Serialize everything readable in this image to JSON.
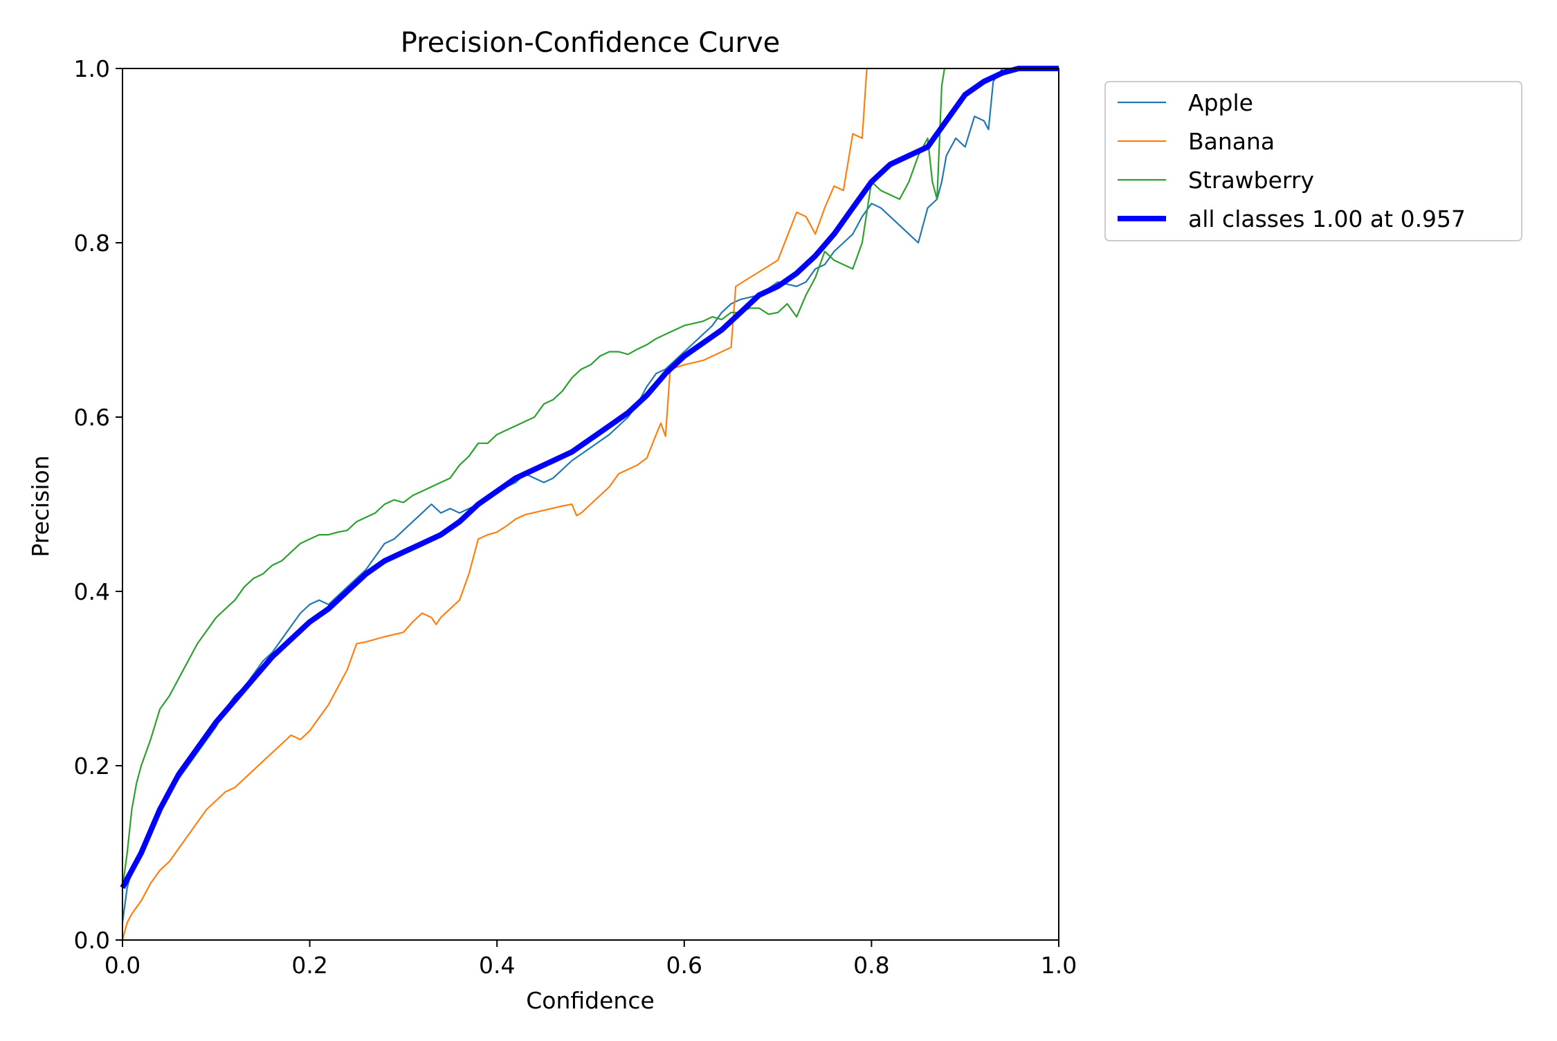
{
  "chart_data": {
    "type": "line",
    "title": "Precision-Confidence Curve",
    "xlabel": "Confidence",
    "ylabel": "Precision",
    "xlim": [
      0,
      1
    ],
    "ylim": [
      0,
      1
    ],
    "x_ticks": [
      "0.0",
      "0.2",
      "0.4",
      "0.6",
      "0.8",
      "1.0"
    ],
    "y_ticks": [
      "0.0",
      "0.2",
      "0.4",
      "0.6",
      "0.8",
      "1.0"
    ],
    "grid": false,
    "legend_position": "outside-top-right",
    "series": [
      {
        "name": "Apple",
        "color": "#1f77b4",
        "points": [
          [
            0,
            0.02
          ],
          [
            0.005,
            0.06
          ],
          [
            0.01,
            0.08
          ],
          [
            0.02,
            0.1
          ],
          [
            0.03,
            0.13
          ],
          [
            0.04,
            0.15
          ],
          [
            0.05,
            0.17
          ],
          [
            0.06,
            0.185
          ],
          [
            0.07,
            0.2
          ],
          [
            0.08,
            0.215
          ],
          [
            0.09,
            0.23
          ],
          [
            0.1,
            0.245
          ],
          [
            0.11,
            0.265
          ],
          [
            0.12,
            0.28
          ],
          [
            0.13,
            0.29
          ],
          [
            0.14,
            0.305
          ],
          [
            0.15,
            0.32
          ],
          [
            0.16,
            0.33
          ],
          [
            0.17,
            0.345
          ],
          [
            0.18,
            0.36
          ],
          [
            0.19,
            0.375
          ],
          [
            0.2,
            0.385
          ],
          [
            0.21,
            0.39
          ],
          [
            0.22,
            0.385
          ],
          [
            0.23,
            0.395
          ],
          [
            0.24,
            0.405
          ],
          [
            0.25,
            0.415
          ],
          [
            0.26,
            0.425
          ],
          [
            0.27,
            0.44
          ],
          [
            0.28,
            0.455
          ],
          [
            0.29,
            0.46
          ],
          [
            0.3,
            0.47
          ],
          [
            0.31,
            0.48
          ],
          [
            0.32,
            0.49
          ],
          [
            0.33,
            0.5
          ],
          [
            0.34,
            0.49
          ],
          [
            0.35,
            0.495
          ],
          [
            0.36,
            0.49
          ],
          [
            0.37,
            0.495
          ],
          [
            0.38,
            0.5
          ],
          [
            0.39,
            0.505
          ],
          [
            0.4,
            0.515
          ],
          [
            0.41,
            0.52
          ],
          [
            0.42,
            0.525
          ],
          [
            0.43,
            0.535
          ],
          [
            0.44,
            0.53
          ],
          [
            0.45,
            0.525
          ],
          [
            0.46,
            0.53
          ],
          [
            0.47,
            0.54
          ],
          [
            0.48,
            0.55
          ],
          [
            0.5,
            0.565
          ],
          [
            0.52,
            0.58
          ],
          [
            0.54,
            0.6
          ],
          [
            0.55,
            0.615
          ],
          [
            0.56,
            0.635
          ],
          [
            0.57,
            0.65
          ],
          [
            0.58,
            0.655
          ],
          [
            0.59,
            0.665
          ],
          [
            0.6,
            0.675
          ],
          [
            0.62,
            0.695
          ],
          [
            0.63,
            0.705
          ],
          [
            0.64,
            0.72
          ],
          [
            0.65,
            0.73
          ],
          [
            0.66,
            0.735
          ],
          [
            0.68,
            0.74
          ],
          [
            0.7,
            0.755
          ],
          [
            0.72,
            0.75
          ],
          [
            0.73,
            0.755
          ],
          [
            0.74,
            0.77
          ],
          [
            0.75,
            0.775
          ],
          [
            0.76,
            0.79
          ],
          [
            0.77,
            0.8
          ],
          [
            0.78,
            0.81
          ],
          [
            0.79,
            0.83
          ],
          [
            0.8,
            0.845
          ],
          [
            0.81,
            0.84
          ],
          [
            0.82,
            0.83
          ],
          [
            0.83,
            0.82
          ],
          [
            0.84,
            0.81
          ],
          [
            0.85,
            0.8
          ],
          [
            0.86,
            0.84
          ],
          [
            0.87,
            0.85
          ],
          [
            0.875,
            0.87
          ],
          [
            0.88,
            0.9
          ],
          [
            0.89,
            0.92
          ],
          [
            0.9,
            0.91
          ],
          [
            0.91,
            0.945
          ],
          [
            0.92,
            0.94
          ],
          [
            0.925,
            0.93
          ],
          [
            0.93,
            0.985
          ],
          [
            0.94,
            1.0
          ],
          [
            1,
            1.0
          ]
        ]
      },
      {
        "name": "Banana",
        "color": "#ff7f0e",
        "points": [
          [
            0,
            0.0
          ],
          [
            0.005,
            0.02
          ],
          [
            0.01,
            0.03
          ],
          [
            0.02,
            0.045
          ],
          [
            0.03,
            0.065
          ],
          [
            0.04,
            0.08
          ],
          [
            0.05,
            0.09
          ],
          [
            0.06,
            0.105
          ],
          [
            0.07,
            0.12
          ],
          [
            0.08,
            0.135
          ],
          [
            0.09,
            0.15
          ],
          [
            0.1,
            0.16
          ],
          [
            0.11,
            0.17
          ],
          [
            0.12,
            0.175
          ],
          [
            0.13,
            0.185
          ],
          [
            0.14,
            0.195
          ],
          [
            0.15,
            0.205
          ],
          [
            0.16,
            0.215
          ],
          [
            0.17,
            0.225
          ],
          [
            0.18,
            0.235
          ],
          [
            0.19,
            0.23
          ],
          [
            0.2,
            0.24
          ],
          [
            0.21,
            0.255
          ],
          [
            0.22,
            0.27
          ],
          [
            0.23,
            0.29
          ],
          [
            0.24,
            0.31
          ],
          [
            0.25,
            0.34
          ],
          [
            0.26,
            0.342
          ],
          [
            0.28,
            0.348
          ],
          [
            0.3,
            0.353
          ],
          [
            0.31,
            0.365
          ],
          [
            0.32,
            0.375
          ],
          [
            0.33,
            0.37
          ],
          [
            0.335,
            0.362
          ],
          [
            0.34,
            0.37
          ],
          [
            0.35,
            0.38
          ],
          [
            0.36,
            0.39
          ],
          [
            0.37,
            0.42
          ],
          [
            0.38,
            0.46
          ],
          [
            0.39,
            0.465
          ],
          [
            0.4,
            0.468
          ],
          [
            0.41,
            0.475
          ],
          [
            0.42,
            0.483
          ],
          [
            0.43,
            0.488
          ],
          [
            0.45,
            0.493
          ],
          [
            0.47,
            0.498
          ],
          [
            0.48,
            0.5
          ],
          [
            0.485,
            0.487
          ],
          [
            0.49,
            0.49
          ],
          [
            0.5,
            0.5
          ],
          [
            0.52,
            0.52
          ],
          [
            0.53,
            0.535
          ],
          [
            0.54,
            0.54
          ],
          [
            0.55,
            0.545
          ],
          [
            0.56,
            0.553
          ],
          [
            0.57,
            0.58
          ],
          [
            0.575,
            0.593
          ],
          [
            0.58,
            0.578
          ],
          [
            0.585,
            0.655
          ],
          [
            0.6,
            0.66
          ],
          [
            0.62,
            0.665
          ],
          [
            0.65,
            0.68
          ],
          [
            0.655,
            0.75
          ],
          [
            0.7,
            0.78
          ],
          [
            0.72,
            0.835
          ],
          [
            0.73,
            0.83
          ],
          [
            0.74,
            0.81
          ],
          [
            0.75,
            0.84
          ],
          [
            0.76,
            0.865
          ],
          [
            0.77,
            0.86
          ],
          [
            0.78,
            0.925
          ],
          [
            0.79,
            0.92
          ],
          [
            0.795,
            1.0
          ],
          [
            0.8,
            1.0
          ]
        ]
      },
      {
        "name": "Strawberry",
        "color": "#2ca02c",
        "points": [
          [
            0,
            0.06
          ],
          [
            0.005,
            0.1
          ],
          [
            0.01,
            0.15
          ],
          [
            0.015,
            0.18
          ],
          [
            0.02,
            0.2
          ],
          [
            0.03,
            0.23
          ],
          [
            0.04,
            0.265
          ],
          [
            0.05,
            0.28
          ],
          [
            0.06,
            0.3
          ],
          [
            0.07,
            0.32
          ],
          [
            0.08,
            0.34
          ],
          [
            0.09,
            0.355
          ],
          [
            0.1,
            0.37
          ],
          [
            0.11,
            0.38
          ],
          [
            0.12,
            0.39
          ],
          [
            0.13,
            0.405
          ],
          [
            0.14,
            0.415
          ],
          [
            0.15,
            0.42
          ],
          [
            0.16,
            0.43
          ],
          [
            0.17,
            0.435
          ],
          [
            0.18,
            0.445
          ],
          [
            0.19,
            0.455
          ],
          [
            0.2,
            0.46
          ],
          [
            0.21,
            0.465
          ],
          [
            0.22,
            0.465
          ],
          [
            0.23,
            0.468
          ],
          [
            0.24,
            0.47
          ],
          [
            0.25,
            0.48
          ],
          [
            0.26,
            0.485
          ],
          [
            0.27,
            0.49
          ],
          [
            0.28,
            0.5
          ],
          [
            0.29,
            0.505
          ],
          [
            0.3,
            0.502
          ],
          [
            0.31,
            0.51
          ],
          [
            0.32,
            0.515
          ],
          [
            0.33,
            0.52
          ],
          [
            0.34,
            0.525
          ],
          [
            0.35,
            0.53
          ],
          [
            0.36,
            0.545
          ],
          [
            0.37,
            0.555
          ],
          [
            0.38,
            0.57
          ],
          [
            0.39,
            0.57
          ],
          [
            0.4,
            0.58
          ],
          [
            0.41,
            0.585
          ],
          [
            0.42,
            0.59
          ],
          [
            0.43,
            0.595
          ],
          [
            0.44,
            0.6
          ],
          [
            0.45,
            0.615
          ],
          [
            0.46,
            0.62
          ],
          [
            0.47,
            0.63
          ],
          [
            0.48,
            0.645
          ],
          [
            0.49,
            0.655
          ],
          [
            0.5,
            0.66
          ],
          [
            0.51,
            0.67
          ],
          [
            0.52,
            0.675
          ],
          [
            0.53,
            0.675
          ],
          [
            0.54,
            0.672
          ],
          [
            0.55,
            0.678
          ],
          [
            0.56,
            0.683
          ],
          [
            0.57,
            0.69
          ],
          [
            0.58,
            0.695
          ],
          [
            0.59,
            0.7
          ],
          [
            0.6,
            0.705
          ],
          [
            0.62,
            0.71
          ],
          [
            0.63,
            0.715
          ],
          [
            0.64,
            0.712
          ],
          [
            0.65,
            0.72
          ],
          [
            0.66,
            0.72
          ],
          [
            0.67,
            0.725
          ],
          [
            0.68,
            0.725
          ],
          [
            0.69,
            0.718
          ],
          [
            0.7,
            0.72
          ],
          [
            0.71,
            0.73
          ],
          [
            0.72,
            0.715
          ],
          [
            0.73,
            0.74
          ],
          [
            0.74,
            0.76
          ],
          [
            0.75,
            0.79
          ],
          [
            0.76,
            0.78
          ],
          [
            0.77,
            0.775
          ],
          [
            0.78,
            0.77
          ],
          [
            0.79,
            0.8
          ],
          [
            0.8,
            0.87
          ],
          [
            0.81,
            0.86
          ],
          [
            0.82,
            0.855
          ],
          [
            0.83,
            0.85
          ],
          [
            0.84,
            0.87
          ],
          [
            0.85,
            0.9
          ],
          [
            0.86,
            0.92
          ],
          [
            0.865,
            0.87
          ],
          [
            0.87,
            0.85
          ],
          [
            0.875,
            0.98
          ],
          [
            0.878,
            1.0
          ],
          [
            0.88,
            1.0
          ]
        ]
      },
      {
        "name": "all classes 1.00 at 0.957",
        "color": "#0000ff",
        "points": [
          [
            0,
            0.06
          ],
          [
            0.02,
            0.1
          ],
          [
            0.04,
            0.15
          ],
          [
            0.06,
            0.19
          ],
          [
            0.08,
            0.22
          ],
          [
            0.1,
            0.25
          ],
          [
            0.12,
            0.275
          ],
          [
            0.14,
            0.3
          ],
          [
            0.16,
            0.325
          ],
          [
            0.18,
            0.345
          ],
          [
            0.2,
            0.365
          ],
          [
            0.22,
            0.38
          ],
          [
            0.24,
            0.4
          ],
          [
            0.26,
            0.42
          ],
          [
            0.28,
            0.435
          ],
          [
            0.3,
            0.445
          ],
          [
            0.32,
            0.455
          ],
          [
            0.34,
            0.465
          ],
          [
            0.36,
            0.48
          ],
          [
            0.38,
            0.5
          ],
          [
            0.4,
            0.515
          ],
          [
            0.42,
            0.53
          ],
          [
            0.44,
            0.54
          ],
          [
            0.46,
            0.55
          ],
          [
            0.48,
            0.56
          ],
          [
            0.5,
            0.575
          ],
          [
            0.52,
            0.59
          ],
          [
            0.54,
            0.605
          ],
          [
            0.56,
            0.625
          ],
          [
            0.58,
            0.65
          ],
          [
            0.6,
            0.67
          ],
          [
            0.62,
            0.685
          ],
          [
            0.64,
            0.7
          ],
          [
            0.66,
            0.72
          ],
          [
            0.68,
            0.74
          ],
          [
            0.7,
            0.75
          ],
          [
            0.72,
            0.765
          ],
          [
            0.74,
            0.785
          ],
          [
            0.76,
            0.81
          ],
          [
            0.78,
            0.84
          ],
          [
            0.8,
            0.87
          ],
          [
            0.82,
            0.89
          ],
          [
            0.84,
            0.9
          ],
          [
            0.86,
            0.91
          ],
          [
            0.88,
            0.94
          ],
          [
            0.9,
            0.97
          ],
          [
            0.92,
            0.985
          ],
          [
            0.94,
            0.995
          ],
          [
            0.957,
            1.0
          ],
          [
            1,
            1.0
          ]
        ]
      }
    ]
  }
}
